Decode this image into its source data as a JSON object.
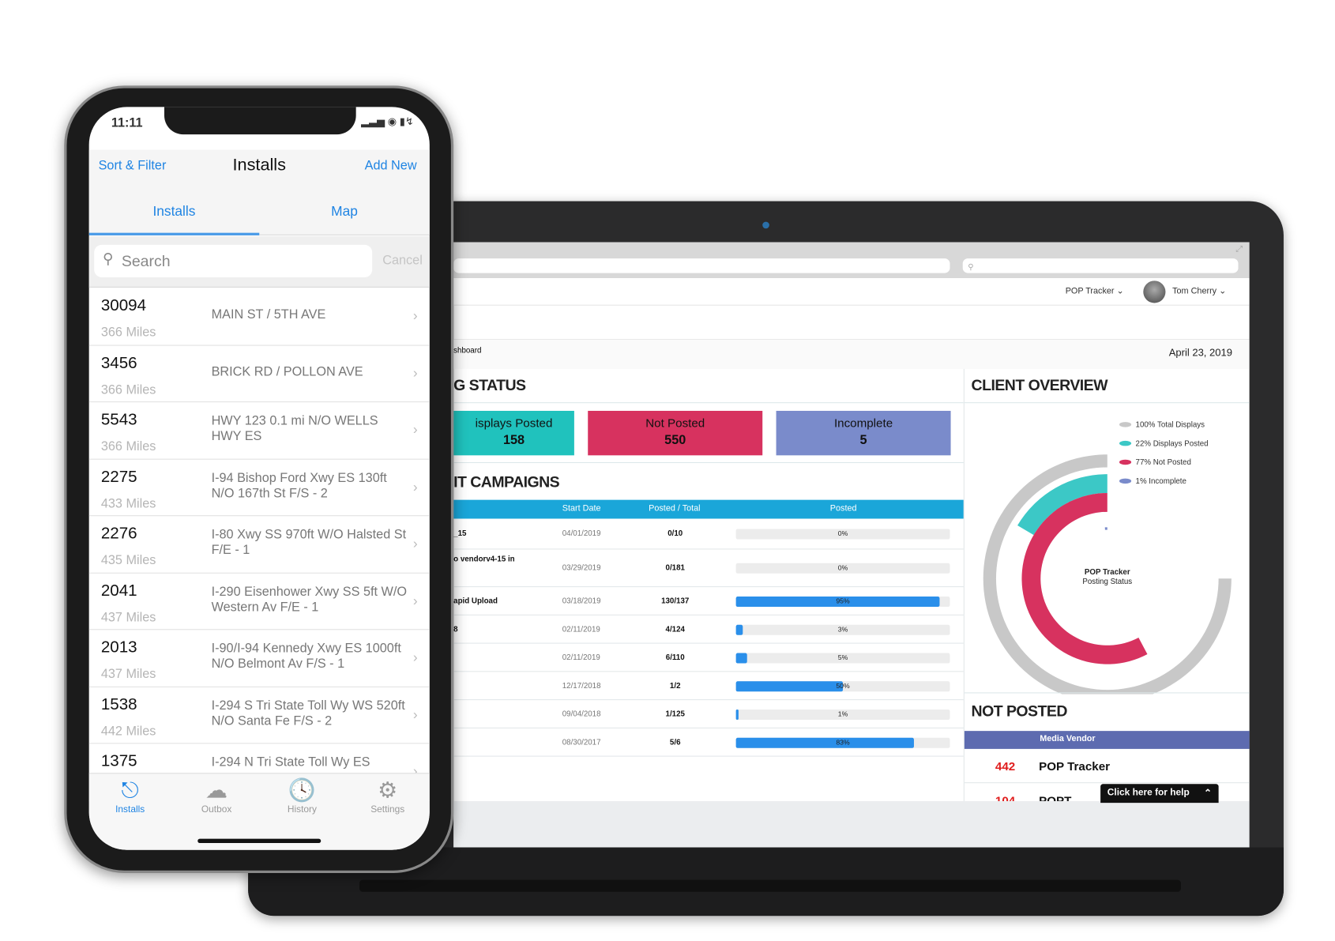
{
  "colors": {
    "accent": "#1f84e3",
    "posted": "#20c2bd",
    "not_posted": "#d7325f",
    "incomplete": "#7a8bcb",
    "table_header": "#1aa6d9",
    "progress": "#2a8fea",
    "vendor_header": "#5d6bb0"
  },
  "phone": {
    "status": {
      "time": "11:11"
    },
    "nav": {
      "left": "Sort & Filter",
      "title": "Installs",
      "right": "Add New"
    },
    "segments": [
      {
        "label": "Installs",
        "active": true
      },
      {
        "label": "Map",
        "active": false
      }
    ],
    "search": {
      "placeholder": "Search",
      "cancel": "Cancel"
    },
    "installs": [
      {
        "id": "30094",
        "distance": "366 Miles",
        "address": "MAIN ST / 5TH AVE"
      },
      {
        "id": "3456",
        "distance": "366 Miles",
        "address": "BRICK RD / POLLON AVE"
      },
      {
        "id": "5543",
        "distance": "366 Miles",
        "address": "HWY 123 0.1 mi N/O WELLS HWY ES"
      },
      {
        "id": "2275",
        "distance": "433 Miles",
        "address": "I-94 Bishop Ford Xwy ES 130ft N/O 167th St F/S - 2"
      },
      {
        "id": "2276",
        "distance": "435 Miles",
        "address": "I-80 Xwy SS 970ft W/O Halsted St F/E - 1"
      },
      {
        "id": "2041",
        "distance": "437 Miles",
        "address": "I-290 Eisenhower Xwy SS 5ft W/O Western Av F/E - 1"
      },
      {
        "id": "2013",
        "distance": "437 Miles",
        "address": "I-90/I-94 Kennedy Xwy ES 1000ft N/O Belmont Av F/S - 1"
      },
      {
        "id": "1538",
        "distance": "442 Miles",
        "address": "I-294 S Tri State Toll Wy WS 520ft N/O Santa Fe F/S - 2"
      },
      {
        "id": "1375",
        "distance": "",
        "address": "I-294 N Tri State Toll Wy ES"
      }
    ],
    "tabs": [
      {
        "label": "Installs",
        "icon": "upload-circle-icon",
        "active": true
      },
      {
        "label": "Outbox",
        "icon": "cloud-upload-icon"
      },
      {
        "label": "History",
        "icon": "clock-icon"
      },
      {
        "label": "Settings",
        "icon": "gear-icon"
      }
    ]
  },
  "web": {
    "topnav": {
      "app": "POP Tracker",
      "user": "Tom Cherry"
    },
    "breadcrumb": "shboard",
    "date": "April 23, 2019",
    "status_title": "G STATUS",
    "cards": [
      {
        "label": "isplays Posted",
        "value": "158"
      },
      {
        "label": "Not Posted",
        "value": "550"
      },
      {
        "label": "Incomplete",
        "value": "5"
      }
    ],
    "campaigns_title": "IT CAMPAIGNS",
    "table": {
      "headers": [
        "Start Date",
        "Posted / Total",
        "Posted"
      ],
      "rows": [
        {
          "name": "_15",
          "date": "04/01/2019",
          "ratio": "0/10",
          "pct": 0,
          "pct_label": "0%"
        },
        {
          "name": "o vendorv4-15 in",
          "date": "03/29/2019",
          "ratio": "0/181",
          "pct": 0,
          "pct_label": "0%"
        },
        {
          "name": "apid Upload",
          "date": "03/18/2019",
          "ratio": "130/137",
          "pct": 95,
          "pct_label": "95%"
        },
        {
          "name": "8",
          "date": "02/11/2019",
          "ratio": "4/124",
          "pct": 3,
          "pct_label": "3%"
        },
        {
          "name": "",
          "date": "02/11/2019",
          "ratio": "6/110",
          "pct": 5,
          "pct_label": "5%"
        },
        {
          "name": "",
          "date": "12/17/2018",
          "ratio": "1/2",
          "pct": 50,
          "pct_label": "50%"
        },
        {
          "name": "",
          "date": "09/04/2018",
          "ratio": "1/125",
          "pct": 1,
          "pct_label": "1%"
        },
        {
          "name": "",
          "date": "08/30/2017",
          "ratio": "5/6",
          "pct": 83,
          "pct_label": "83%"
        }
      ]
    },
    "overview_title": "CLIENT OVERVIEW",
    "chart_data": {
      "type": "radial-bar",
      "center_label": [
        "POP Tracker",
        "Posting Status"
      ],
      "legend_position": "top-right",
      "series": [
        {
          "name": "100% Total Displays",
          "value": 100,
          "color": "#c8c8c8"
        },
        {
          "name": "22% Displays Posted",
          "value": 22,
          "color": "#3cc8c6"
        },
        {
          "name": "77% Not Posted",
          "value": 77,
          "color": "#d7325f"
        },
        {
          "name": "1% Incomplete",
          "value": 1,
          "color": "#7a8bcb"
        }
      ]
    },
    "not_posted_title": "NOT POSTED",
    "vendor_header": "Media Vendor",
    "vendors": [
      {
        "count": "442",
        "name": "POP Tracker"
      },
      {
        "count": "104",
        "name": "POPT"
      }
    ],
    "help": "Click here for help"
  }
}
